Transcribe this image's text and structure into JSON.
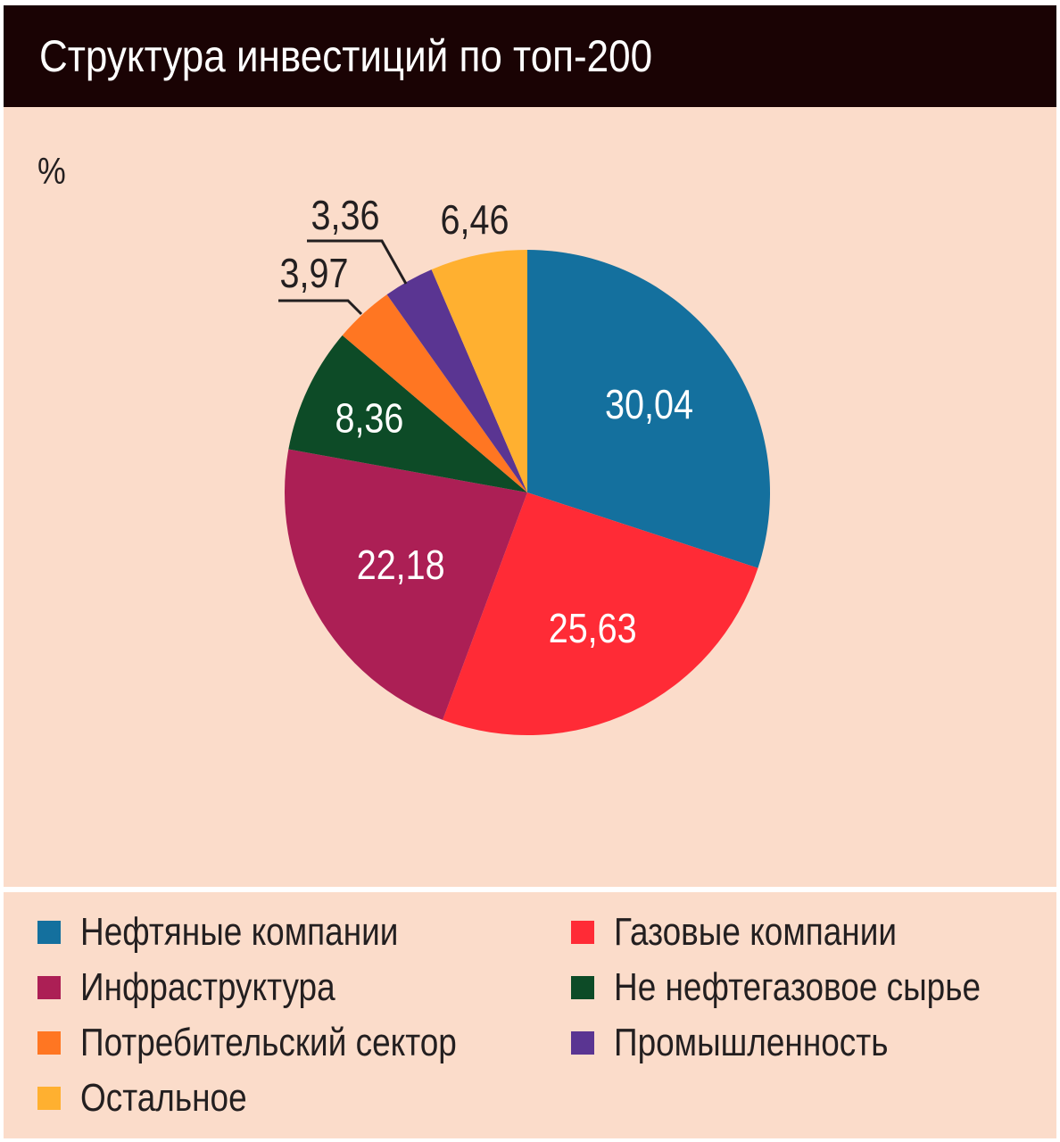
{
  "title": "Структура инвестиций по топ-200",
  "chart_data": {
    "type": "pie",
    "title": "Структура инвестиций по топ-200",
    "unit": "%",
    "slices": [
      {
        "name": "Нефтяные компании",
        "value": 30.04,
        "label": "30,04",
        "color": "#14709e",
        "label_color": "#ffffff"
      },
      {
        "name": "Газовые компании",
        "value": 25.63,
        "label": "25,63",
        "color": "#ff2b36",
        "label_color": "#ffffff"
      },
      {
        "name": "Инфраструктура",
        "value": 22.18,
        "label": "22,18",
        "color": "#ac1f55",
        "label_color": "#ffffff"
      },
      {
        "name": "Не нефтегазовое сырье",
        "value": 8.36,
        "label": "8,36",
        "color": "#0d4b27",
        "label_color": "#ffffff"
      },
      {
        "name": "Потребительский сектор",
        "value": 3.97,
        "label": "3,97",
        "color": "#ff7622",
        "label_color": "#231f20"
      },
      {
        "name": "Промышленность",
        "value": 3.36,
        "label": "3,36",
        "color": "#5a3592",
        "label_color": "#231f20"
      },
      {
        "name": "Остальное",
        "value": 6.46,
        "label": "6,46",
        "color": "#ffb030",
        "label_color": "#231f20"
      }
    ],
    "start_angle": "12 o'clock",
    "direction": "clockwise",
    "legend_placement": "bottom"
  },
  "colors": {
    "title_bar": "#1a0304",
    "title_text": "#ffffff",
    "panel_background": "#fbdcca",
    "text": "#231f20"
  }
}
